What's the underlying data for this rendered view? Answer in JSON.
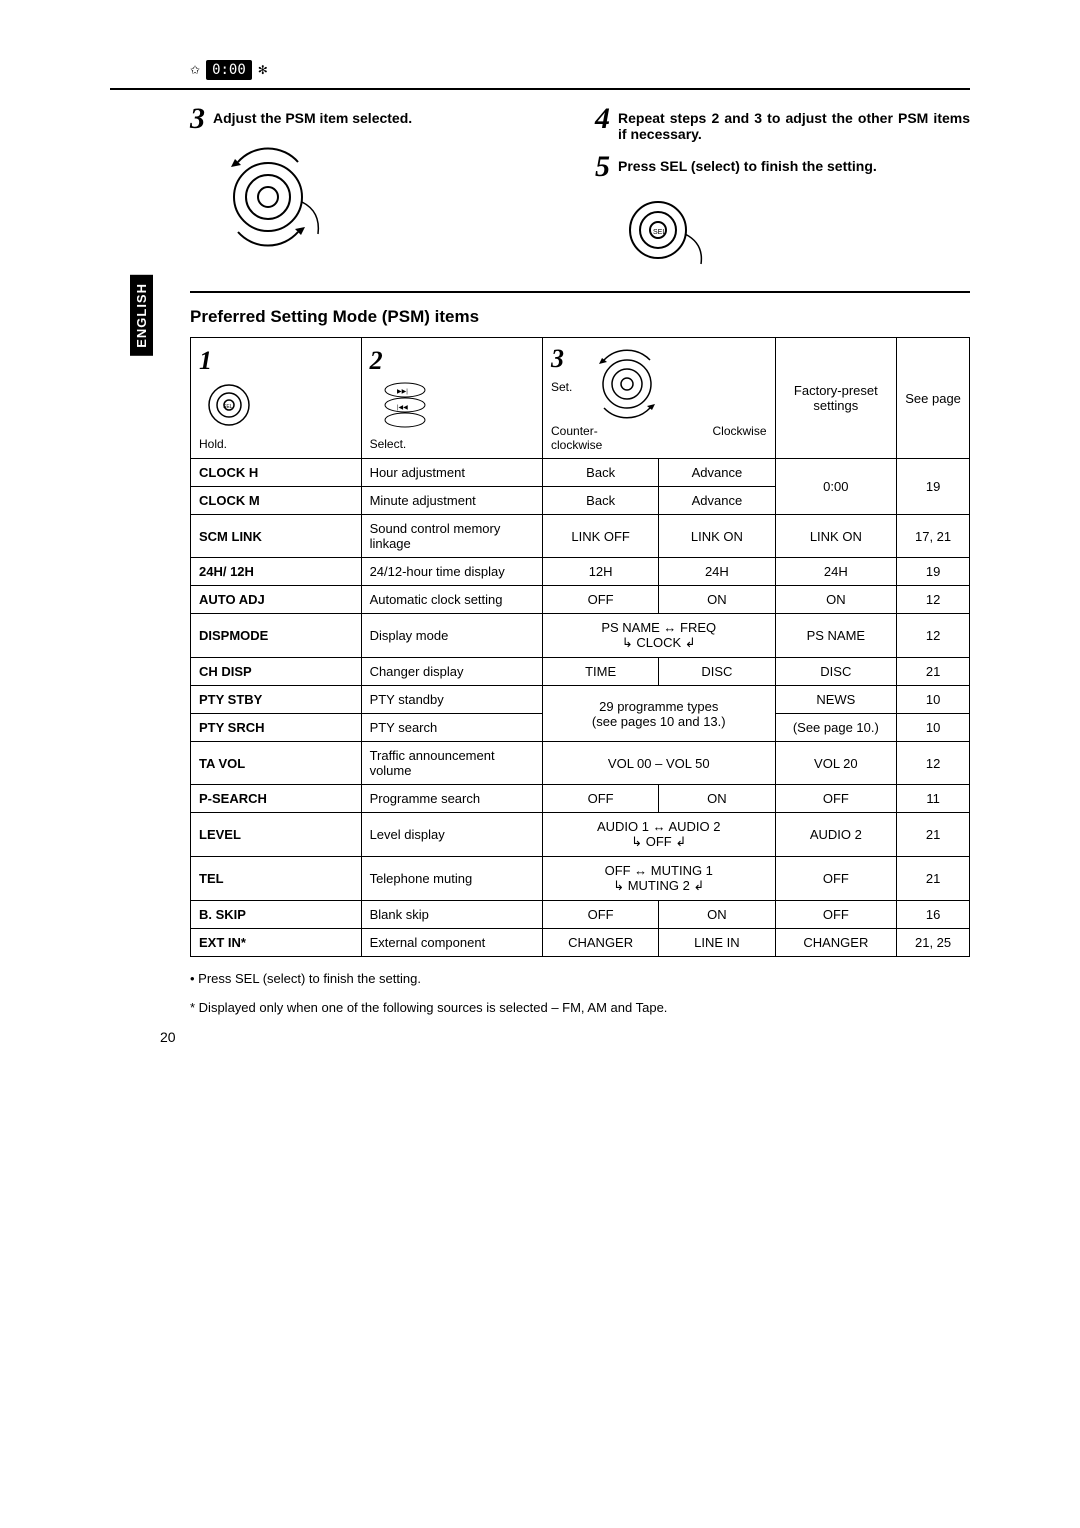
{
  "header_display": "0:00",
  "language_tab": "ENGLISH",
  "steps": {
    "s3": {
      "num": "3",
      "text": "Adjust the PSM item selected."
    },
    "s4": {
      "num": "4",
      "text": "Repeat steps 2 and 3 to adjust the other PSM items if necessary."
    },
    "s5": {
      "num": "5",
      "text": "Press SEL (select) to finish the setting."
    }
  },
  "section_title": "Preferred Setting Mode (PSM) items",
  "table_header": {
    "c1_num": "1",
    "c1_label": "Hold.",
    "c2_num": "2",
    "c2_label": "Select.",
    "c3_num": "3",
    "c3_set": "Set.",
    "c3_ccw": "Counter-\nclockwise",
    "c3_cw": "Clockwise",
    "c4": "Factory-preset settings",
    "c5": "See page"
  },
  "rows": [
    {
      "name": "CLOCK H",
      "desc": "Hour adjustment",
      "ccw": "Back",
      "cw": "Advance",
      "factory": "0:00",
      "page": "19",
      "merge_factory": 2,
      "merge_page": 2
    },
    {
      "name": "CLOCK M",
      "desc": "Minute adjustment",
      "ccw": "Back",
      "cw": "Advance"
    },
    {
      "name": "SCM LINK",
      "desc": "Sound control memory linkage",
      "ccw": "LINK OFF",
      "cw": "LINK ON",
      "factory": "LINK ON",
      "page": "17, 21"
    },
    {
      "name": "24H/ 12H",
      "desc": "24/12-hour time display",
      "ccw": "12H",
      "cw": "24H",
      "factory": "24H",
      "page": "19"
    },
    {
      "name": "AUTO ADJ",
      "desc": "Automatic clock setting",
      "ccw": "OFF",
      "cw": "ON",
      "factory": "ON",
      "page": "12"
    },
    {
      "name": "DISPMODE",
      "desc": "Display mode",
      "cycle": "PS NAME  ↔  FREQ\n↳      CLOCK      ↲",
      "factory": "PS NAME",
      "page": "12"
    },
    {
      "name": "CH DISP",
      "desc": "Changer display",
      "ccw": "TIME",
      "cw": "DISC",
      "factory": "DISC",
      "page": "21"
    },
    {
      "name": "PTY STBY",
      "desc": "PTY standby",
      "merged_set": "29 programme types\n(see pages 10 and 13.)",
      "merge_set": 2,
      "factory": "NEWS",
      "page": "10"
    },
    {
      "name": "PTY SRCH",
      "desc": "PTY search",
      "factory": "(See page 10.)",
      "page": "10"
    },
    {
      "name": "TA VOL",
      "desc": "Traffic announcement volume",
      "merged_set": "VOL 00 – VOL 50",
      "factory": "VOL 20",
      "page": "12"
    },
    {
      "name": "P-SEARCH",
      "desc": "Programme search",
      "ccw": "OFF",
      "cw": "ON",
      "factory": "OFF",
      "page": "11"
    },
    {
      "name": "LEVEL",
      "desc": "Level display",
      "cycle": "AUDIO 1   ↔   AUDIO 2\n↳      OFF      ↲",
      "factory": "AUDIO 2",
      "page": "21"
    },
    {
      "name": "TEL",
      "desc": "Telephone muting",
      "cycle": "OFF    ↔   MUTING 1\n↳   MUTING 2   ↲",
      "factory": "OFF",
      "page": "21"
    },
    {
      "name": "B. SKIP",
      "desc": "Blank skip",
      "ccw": "OFF",
      "cw": "ON",
      "factory": "OFF",
      "page": "16"
    },
    {
      "name": "EXT IN*",
      "desc": "External component",
      "ccw": "CHANGER",
      "cw": "LINE IN",
      "factory": "CHANGER",
      "page": "21, 25"
    }
  ],
  "footnotes": {
    "a": "• Press SEL (select) to finish the setting.",
    "b": "* Displayed only when one of the following sources is selected – FM, AM and Tape."
  },
  "page_number": "20"
}
